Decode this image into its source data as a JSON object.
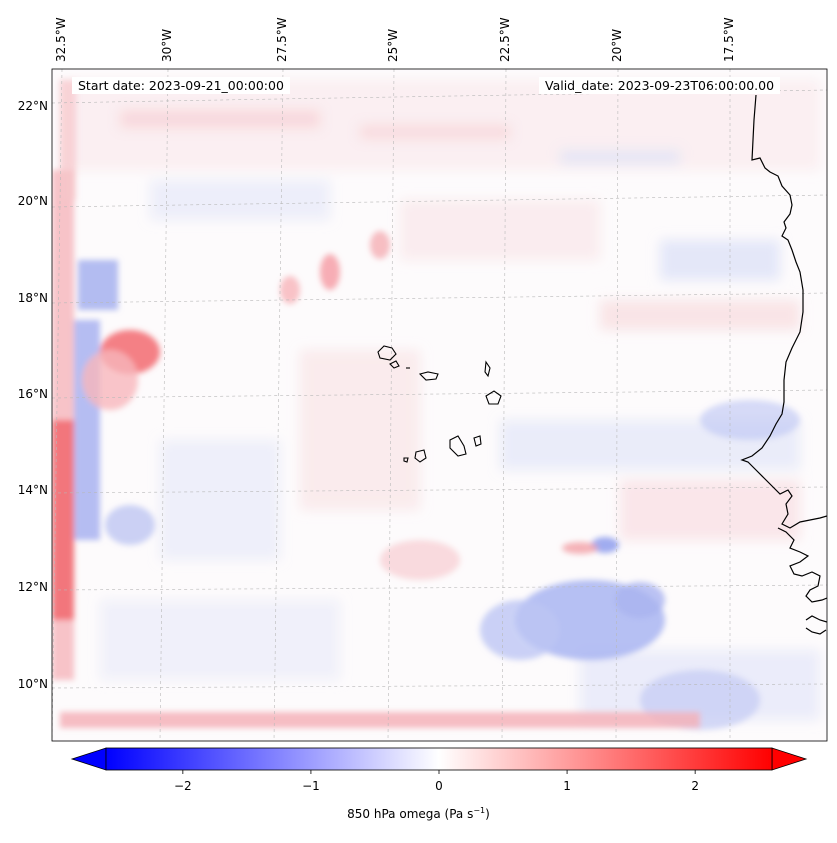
{
  "map": {
    "start_date": "Start date: 2023-09-21_00:00:00",
    "valid_date": "Valid_date: 2023-09-23T06:00:00.00",
    "longitude_labels": [
      "32.5°W",
      "30°W",
      "27.5°W",
      "25°W",
      "22.5°W",
      "20°W",
      "17.5°W"
    ],
    "latitude_labels": [
      "22°N",
      "20°N",
      "18°N",
      "16°N",
      "14°N",
      "12°N",
      "10°N"
    ],
    "extent": {
      "lon_min": -33.0,
      "lon_max": -16.0,
      "lat_min": 8.8,
      "lat_max": 22.8
    },
    "field": "850 hPa omega",
    "colormap": "bwr",
    "coastline_color": "#000000",
    "gridlines": "dashed grey"
  },
  "colorbar": {
    "label": "850 hPa omega (Pa s",
    "label_sup": "−1",
    "label_end": ")",
    "ticks": [
      "−2",
      "−1",
      "0",
      "1",
      "2"
    ],
    "tick_values": [
      -2,
      -1,
      0,
      1,
      2
    ],
    "range": [
      -2.6,
      2.6
    ],
    "extend": "both",
    "colors": {
      "negative": "#0000ff",
      "zero": "#ffffff",
      "positive": "#ff0000"
    }
  }
}
